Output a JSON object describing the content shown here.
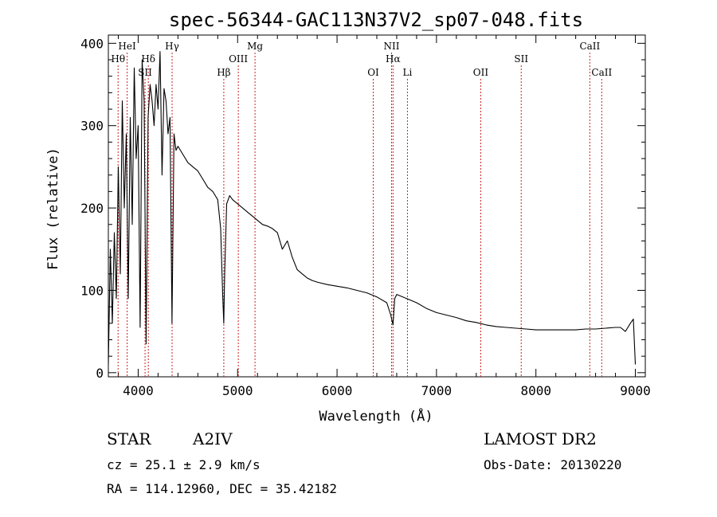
{
  "chart_data": {
    "type": "line",
    "title": "spec-56344-GAC113N37V2_sp07-048.fits",
    "xlabel": "Wavelength (Å)",
    "ylabel": "Flux (relative)",
    "xlim": [
      3700,
      9100
    ],
    "ylim": [
      -5,
      410
    ],
    "x_ticks": [
      4000,
      5000,
      6000,
      7000,
      8000,
      9000
    ],
    "y_ticks": [
      0,
      100,
      200,
      300,
      400
    ],
    "grid": false,
    "spectral_lines": [
      {
        "label": "Hθ",
        "wavelength": 3798,
        "row": 2
      },
      {
        "label": "HeI",
        "wavelength": 3889,
        "row": 1
      },
      {
        "label": "SII",
        "wavelength": 4069,
        "row": 3
      },
      {
        "label": "Hδ",
        "wavelength": 4102,
        "row": 2
      },
      {
        "label": "Hγ",
        "wavelength": 4341,
        "row": 1
      },
      {
        "label": "Hβ",
        "wavelength": 4861,
        "row": 3
      },
      {
        "label": "OIII",
        "wavelength": 5007,
        "row": 2
      },
      {
        "label": "Mg",
        "wavelength": 5175,
        "row": 1
      },
      {
        "label": "OI",
        "wavelength": 6364,
        "row": 3
      },
      {
        "label": "NII",
        "wavelength": 6548,
        "row": 1
      },
      {
        "label": "Hα",
        "wavelength": 6563,
        "row": 2
      },
      {
        "label": "Li",
        "wavelength": 6708,
        "row": 3
      },
      {
        "label": "OII",
        "wavelength": 7445,
        "row": 3
      },
      {
        "label": "SII",
        "wavelength": 7852,
        "row": 2
      },
      {
        "label": "CaII",
        "wavelength": 8542,
        "row": 1
      },
      {
        "label": "CaII",
        "wavelength": 8662,
        "row": 3
      }
    ],
    "series": [
      {
        "x": [
          3700,
          3720,
          3740,
          3760,
          3780,
          3800,
          3820,
          3840,
          3860,
          3880,
          3900,
          3920,
          3940,
          3960,
          3980,
          4000,
          4020,
          4040,
          4060,
          4080,
          4100,
          4120,
          4140,
          4160,
          4180,
          4200,
          4220,
          4240,
          4260,
          4280,
          4300,
          4320,
          4340,
          4360,
          4380,
          4400,
          4450,
          4500,
          4550,
          4600,
          4650,
          4700,
          4750,
          4800,
          4830,
          4850,
          4861,
          4870,
          4890,
          4920,
          4950,
          5000,
          5050,
          5100,
          5150,
          5200,
          5250,
          5300,
          5350,
          5400,
          5450,
          5500,
          5550,
          5600,
          5650,
          5700,
          5750,
          5800,
          5900,
          6000,
          6100,
          6200,
          6300,
          6400,
          6500,
          6540,
          6563,
          6580,
          6600,
          6700,
          6800,
          6900,
          7000,
          7100,
          7200,
          7300,
          7400,
          7500,
          7600,
          7700,
          7800,
          7900,
          8000,
          8100,
          8200,
          8300,
          8400,
          8500,
          8600,
          8700,
          8800,
          8850,
          8900,
          8950,
          8980,
          9000
        ],
        "y": [
          10,
          150,
          60,
          170,
          90,
          250,
          120,
          330,
          200,
          290,
          90,
          310,
          180,
          370,
          260,
          300,
          55,
          380,
          330,
          35,
          310,
          350,
          330,
          300,
          350,
          320,
          390,
          240,
          345,
          330,
          290,
          310,
          60,
          290,
          270,
          275,
          265,
          255,
          250,
          245,
          235,
          225,
          220,
          210,
          175,
          95,
          60,
          120,
          205,
          215,
          210,
          205,
          200,
          195,
          190,
          185,
          180,
          178,
          175,
          170,
          150,
          160,
          140,
          125,
          120,
          115,
          112,
          110,
          107,
          105,
          103,
          100,
          97,
          92,
          85,
          70,
          58,
          90,
          95,
          90,
          85,
          78,
          73,
          70,
          67,
          63,
          61,
          58,
          56,
          55,
          54,
          53,
          52,
          52,
          52,
          52,
          52,
          53,
          53,
          54,
          55,
          55,
          50,
          60,
          65,
          10
        ]
      }
    ]
  },
  "info": {
    "object_class": "STAR",
    "subclass": "A2IV",
    "survey": "LAMOST DR2",
    "redshift_text": "cz = 25.1 ± 2.9 km/s",
    "obs_date_text": "Obs-Date: 20130220",
    "coords_text": "RA = 114.12960, DEC =  35.42182"
  }
}
